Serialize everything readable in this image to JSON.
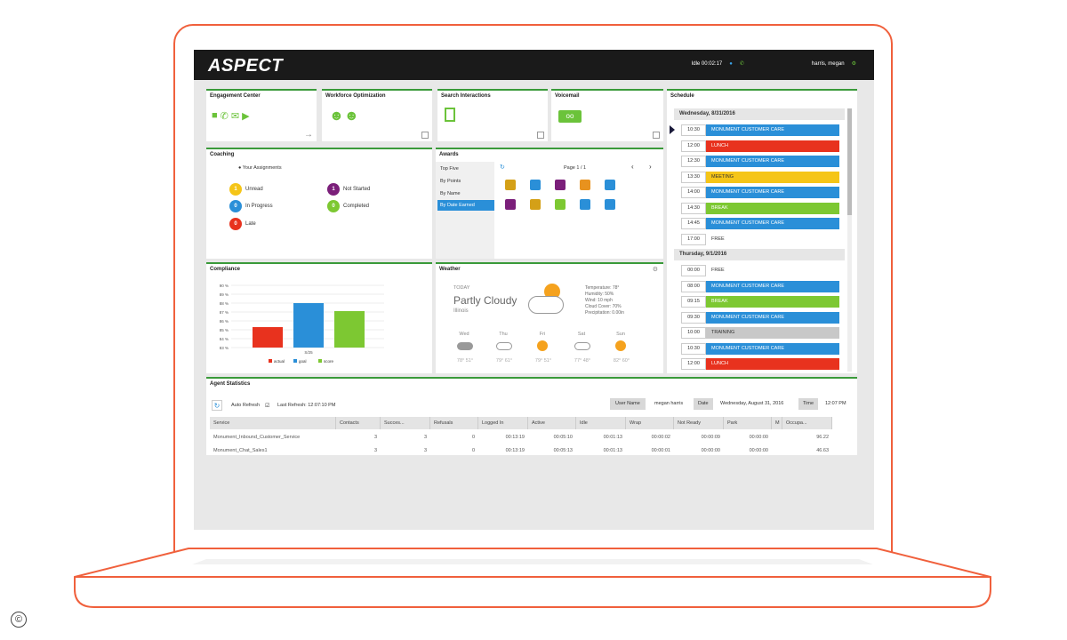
{
  "topbar": {
    "logo": "ASPECT",
    "idle_status": "Idle 00:02:17",
    "user": "harris, megan"
  },
  "engagement": {
    "title": "Engagement Center"
  },
  "workforce": {
    "title": "Workforce Optimization"
  },
  "search": {
    "title": "Search Interactions"
  },
  "voicemail": {
    "title": "Voicemail"
  },
  "coaching": {
    "title": "Coaching",
    "subtitle": "Your Assignments",
    "items": [
      {
        "count": "1",
        "label": "Unread",
        "color": "#f5c518"
      },
      {
        "count": "1",
        "label": "Not Started",
        "color": "#7b1f7a"
      },
      {
        "count": "0",
        "label": "In Progress",
        "color": "#2a8fd8"
      },
      {
        "count": "0",
        "label": "Completed",
        "color": "#7dc832"
      },
      {
        "count": "0",
        "label": "Late",
        "color": "#e8321e"
      }
    ]
  },
  "awards": {
    "title": "Awards",
    "tabs": [
      "Top Five",
      "By Points",
      "By Name",
      "By Date Earned"
    ],
    "page": "Page 1 / 1"
  },
  "compliance": {
    "title": "Compliance"
  },
  "chart_data": {
    "type": "bar",
    "categories": [
      "actual",
      "goal",
      "score"
    ],
    "values": [
      85.3,
      88.0,
      87.1
    ],
    "colors": [
      "#e8321e",
      "#2a8fd8",
      "#7dc832"
    ],
    "xlabel": "S/25",
    "yticks": [
      "90 %",
      "89 %",
      "88 %",
      "87 %",
      "86 %",
      "85 %",
      "84 %",
      "83 %"
    ],
    "ylim": [
      83,
      90
    ],
    "legend": [
      "actual",
      "goal",
      "score"
    ]
  },
  "weather": {
    "title": "Weather",
    "today": "TODAY",
    "condition": "Partly Cloudy",
    "location": "Illinois",
    "details": [
      "Temperature: 78°",
      "Humidity: 50%",
      "Wind: 10 mph",
      "Cloud Cover: 70%",
      "Precipitation: 0.00in"
    ],
    "forecast": [
      {
        "day": "Wed",
        "temps": "78°  51°"
      },
      {
        "day": "Thu",
        "temps": "79°  61°"
      },
      {
        "day": "Fri",
        "temps": "79°  51°"
      },
      {
        "day": "Sat",
        "temps": "77°  48°"
      },
      {
        "day": "Sun",
        "temps": "82°  60°"
      }
    ]
  },
  "schedule": {
    "title": "Schedule",
    "day1": "Wednesday, 8/31/2016",
    "day1_rows": [
      {
        "time": "10:30",
        "activity": "MONUMENT CUSTOMER CARE",
        "color": "#2a8fd8"
      },
      {
        "time": "12:00",
        "activity": "LUNCH",
        "color": "#e8321e"
      },
      {
        "time": "12:30",
        "activity": "MONUMENT CUSTOMER CARE",
        "color": "#2a8fd8"
      },
      {
        "time": "13:30",
        "activity": "MEETING",
        "color": "#f5c518"
      },
      {
        "time": "14:00",
        "activity": "MONUMENT CUSTOMER CARE",
        "color": "#2a8fd8"
      },
      {
        "time": "14:30",
        "activity": "BREAK",
        "color": "#7dc832"
      },
      {
        "time": "14:45",
        "activity": "MONUMENT CUSTOMER CARE",
        "color": "#2a8fd8"
      },
      {
        "time": "17:00",
        "activity": "FREE",
        "color": "#ffffff"
      }
    ],
    "day2": "Thursday, 9/1/2016",
    "day2_rows": [
      {
        "time": "00:00",
        "activity": "FREE",
        "color": "#ffffff"
      },
      {
        "time": "08:00",
        "activity": "MONUMENT CUSTOMER CARE",
        "color": "#2a8fd8"
      },
      {
        "time": "09:15",
        "activity": "BREAK",
        "color": "#7dc832"
      },
      {
        "time": "09:30",
        "activity": "MONUMENT CUSTOMER CARE",
        "color": "#2a8fd8"
      },
      {
        "time": "10:00",
        "activity": "TRAINING",
        "color": "#c8c8c8"
      },
      {
        "time": "10:30",
        "activity": "MONUMENT CUSTOMER CARE",
        "color": "#2a8fd8"
      },
      {
        "time": "12:00",
        "activity": "LUNCH",
        "color": "#e8321e"
      }
    ]
  },
  "agent_stats": {
    "title": "Agent Statistics",
    "auto_refresh": "Auto Refresh",
    "last_refresh": "Last Refresh: 12:07:10 PM",
    "user_name_label": "User Name",
    "user_name": "megan harris",
    "date_label": "Date",
    "date": "Wednesday, August 31, 2016",
    "time_label": "Time",
    "time": "12:07 PM",
    "columns": [
      "Service",
      "Contacts",
      "Succes...",
      "Refusals",
      "Logged In",
      "Active",
      "Idle",
      "Wrap",
      "Not Ready",
      "Park",
      "M",
      "Occupa..."
    ],
    "rows": [
      [
        "Monument_Inbound_Customer_Service",
        "3",
        "3",
        "0",
        "00:13:19",
        "00:05:10",
        "00:01:13",
        "00:00:02",
        "00:00:09",
        "00:00:00",
        "",
        "96.22"
      ],
      [
        "Monument_Chat_Sales1",
        "3",
        "3",
        "0",
        "00:13:19",
        "00:05:13",
        "00:01:13",
        "00:00:01",
        "00:00:00",
        "00:00:00",
        "",
        "46.63"
      ]
    ]
  },
  "copyright": "©"
}
